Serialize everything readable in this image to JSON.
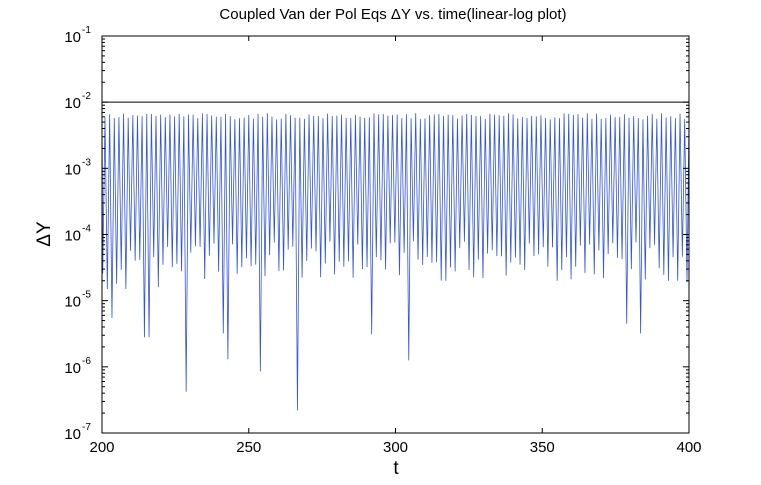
{
  "chart_data": {
    "type": "line",
    "title": "Coupled Van der Pol Eqs ΔY vs. time(linear-log plot)",
    "xlabel": "t",
    "ylabel": "ΔY",
    "xlim": [
      200,
      400
    ],
    "ylim": [
      1e-07,
      0.1
    ],
    "yscale": "log",
    "grid": false,
    "x_ticks": [
      "200",
      "250",
      "300",
      "350",
      "400"
    ],
    "y_ticks": [
      {
        "base": "10",
        "exp": "-7",
        "value": 1e-07
      },
      {
        "base": "10",
        "exp": "-6",
        "value": 1e-06
      },
      {
        "base": "10",
        "exp": "-5",
        "value": 1e-05
      },
      {
        "base": "10",
        "exp": "-4",
        "value": 0.0001
      },
      {
        "base": "10",
        "exp": "-3",
        "value": 0.001
      },
      {
        "base": "10",
        "exp": "-2",
        "value": 0.01
      },
      {
        "base": "10",
        "exp": "-1",
        "value": 0.1
      }
    ],
    "reference_line": {
      "y": 0.01
    },
    "series": [
      {
        "color": "#3355dd",
        "oscillation": {
          "period": 1.58,
          "peak_min": 0.0055,
          "peak_max": 0.0068,
          "typical_trough_range": [
            2e-05,
            8e-05
          ]
        },
        "notable_minima": [
          {
            "t": 201.2,
            "y": 1.5e-05
          },
          {
            "t": 203.6,
            "y": 5.5e-06
          },
          {
            "t": 205.3,
            "y": 1.8e-05
          },
          {
            "t": 208.7,
            "y": 1.5e-05
          },
          {
            "t": 215.2,
            "y": 2.8e-06
          },
          {
            "t": 216.8,
            "y": 2.8e-06
          },
          {
            "t": 219.6,
            "y": 1.6e-05
          },
          {
            "t": 228.6,
            "y": 4.2e-07
          },
          {
            "t": 241.0,
            "y": 3.2e-06
          },
          {
            "t": 242.5,
            "y": 1.3e-06
          },
          {
            "t": 253.7,
            "y": 8.5e-07
          },
          {
            "t": 266.4,
            "y": 2.2e-07
          },
          {
            "t": 278.9,
            "y": 2.5e-05
          },
          {
            "t": 291.5,
            "y": 3.1e-06
          },
          {
            "t": 304.0,
            "y": 1.25e-06
          },
          {
            "t": 317.0,
            "y": 2e-05
          },
          {
            "t": 329.6,
            "y": 2.2e-05
          },
          {
            "t": 342.2,
            "y": 3.5e-05
          },
          {
            "t": 354.7,
            "y": 2e-05
          },
          {
            "t": 367.3,
            "y": 2.5e-05
          },
          {
            "t": 378.6,
            "y": 4.5e-06
          },
          {
            "t": 380.1,
            "y": 3e-05
          },
          {
            "t": 384.0,
            "y": 3.2e-06
          },
          {
            "t": 392.4,
            "y": 2e-05
          },
          {
            "t": 396.4,
            "y": 2e-05
          },
          {
            "t": 399.6,
            "y": 1.9e-05
          }
        ]
      }
    ]
  }
}
